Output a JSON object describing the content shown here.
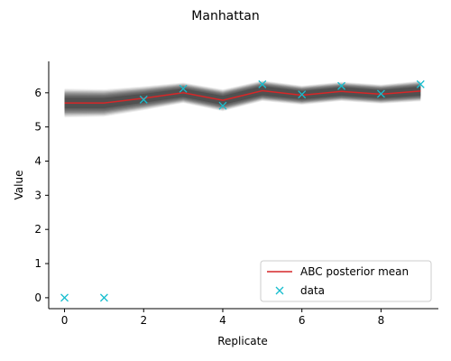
{
  "chart_data": {
    "type": "line",
    "title": "Manhattan",
    "xlabel": "Replicate",
    "ylabel": "Value",
    "xlim": [
      -0.4,
      9.45
    ],
    "ylim": [
      -0.32,
      6.92
    ],
    "xticks": [
      0,
      2,
      4,
      6,
      8
    ],
    "yticks": [
      0,
      1,
      2,
      3,
      4,
      5,
      6
    ],
    "grid": false,
    "legend_position": "lower-right",
    "x": [
      0,
      1,
      2,
      3,
      4,
      5,
      6,
      7,
      8,
      9
    ],
    "series": [
      {
        "name": "ABC posterior mean",
        "kind": "line",
        "color": "#d62728",
        "values": [
          5.7,
          5.7,
          5.84,
          6.0,
          5.78,
          6.06,
          5.93,
          6.04,
          5.96,
          6.05
        ]
      },
      {
        "name": "data",
        "kind": "marker-x",
        "color": "#17becf",
        "values": [
          0.0,
          0.0,
          5.8,
          6.12,
          5.62,
          6.25,
          5.95,
          6.2,
          5.97,
          6.25
        ]
      }
    ],
    "posterior_band": {
      "color": "#555555",
      "center": [
        5.7,
        5.7,
        5.84,
        6.0,
        5.78,
        6.06,
        5.93,
        6.04,
        5.96,
        6.05
      ],
      "inner_halfwidth": [
        0.15,
        0.15,
        0.13,
        0.12,
        0.13,
        0.13,
        0.12,
        0.12,
        0.12,
        0.13
      ],
      "outer_halfwidth": [
        0.42,
        0.4,
        0.35,
        0.3,
        0.32,
        0.3,
        0.28,
        0.28,
        0.28,
        0.3
      ]
    }
  }
}
